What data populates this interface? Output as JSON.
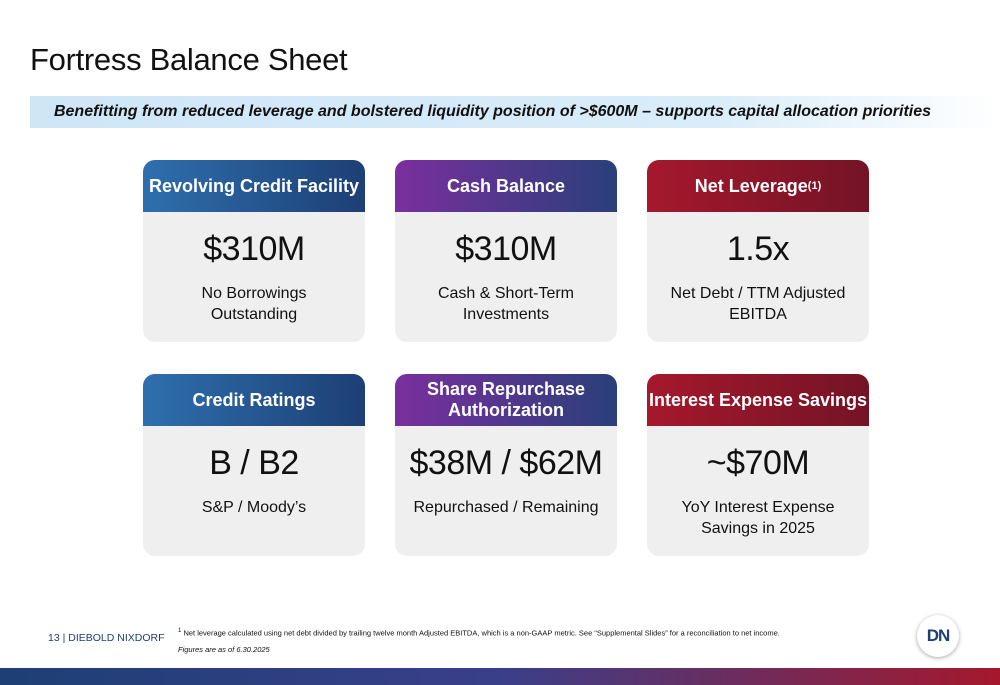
{
  "header": {
    "title": "Fortress Balance Sheet",
    "subtitle": "Benefitting from reduced leverage and bolstered liquidity position of >$600M – supports capital allocation priorities"
  },
  "cards": [
    {
      "title": "Revolving Credit Facility",
      "value": "$310M",
      "description": [
        "No Borrowings",
        "Outstanding"
      ]
    },
    {
      "title": "Cash Balance",
      "value": "$310M",
      "description": [
        "Cash & Short-Term",
        "Investments"
      ]
    },
    {
      "title": "Net Leverage",
      "title_superscript": "(1)",
      "value": "1.5x",
      "description": [
        "Net Debt / TTM Adjusted",
        "EBITDA"
      ]
    },
    {
      "title": "Credit Ratings",
      "value": "B / B2",
      "description": [
        "S&P / Moody’s"
      ]
    },
    {
      "title": "Share Repurchase Authorization",
      "value": "$38M / $62M",
      "description": [
        "Repurchased / Remaining"
      ]
    },
    {
      "title": "Interest Expense Savings",
      "value": "~$70M",
      "description": [
        "YoY Interest Expense",
        "Savings in 2025"
      ]
    }
  ],
  "footer": {
    "page": "13  |  DIEBOLD NIXDORF",
    "footnote_marker": "1",
    "footnote": "Net leverage calculated using net debt divided by trailing twelve month Adjusted EBITDA, which is a non-GAAP metric. See “Supplemental Slides” for a reconciliation to net income.",
    "note": "Figures are as of 6.30.2025",
    "logo": "DN"
  }
}
